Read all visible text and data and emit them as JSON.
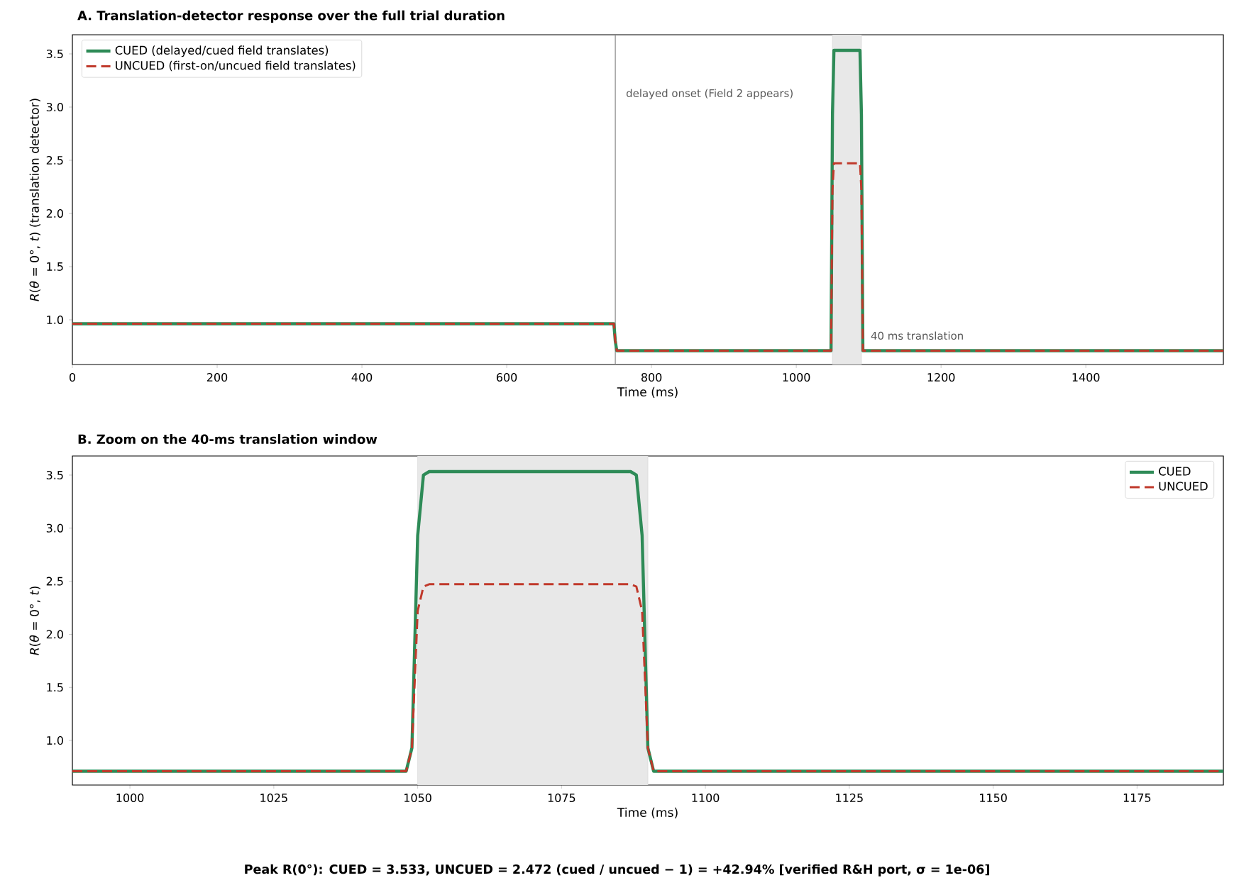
{
  "chart_data": [
    {
      "type": "line",
      "title": "**A.  Translation-detector response over the full trial duration**",
      "xlabel": "Time (ms)",
      "ylabel": "*R*(*θ* = 0°, *t*)    (translation detector)",
      "xlim": [
        0,
        1590
      ],
      "ylim": [
        0.58,
        3.68
      ],
      "xticks": [
        0,
        200,
        400,
        600,
        800,
        1000,
        1200,
        1400
      ],
      "yticks": [
        {
          "value": 1.0,
          "label": "1.0"
        },
        1.5,
        {
          "value": 2.0,
          "label": "2.0"
        },
        2.5,
        {
          "value": 3.0,
          "label": "3.0"
        },
        3.5
      ],
      "legend": "top left",
      "ref_lines": [
        {
          "axis": "x",
          "value": 750,
          "label": "delayed onset (Field 2 appears)",
          "color": "#888888"
        }
      ],
      "bands": [
        {
          "axis": "x",
          "from": 1050,
          "to": 1090,
          "label": "40 ms translation",
          "color": "#e8e8e8"
        }
      ],
      "series": [
        {
          "name": "CUED   (delayed/cued field translates)",
          "color": "#2e8b57",
          "line_style": "solid",
          "x": [
            0,
            748,
            750,
            752,
            1048,
            1050,
            1052,
            1088,
            1090,
            1092,
            1590
          ],
          "values": [
            0.963,
            0.963,
            0.8,
            0.71,
            0.71,
            2.93,
            3.533,
            3.533,
            2.93,
            0.71,
            0.71
          ]
        },
        {
          "name": "UNCUED (first-on/uncued field translates)",
          "color": "#c0392b",
          "line_style": "dashed",
          "x": [
            0,
            748,
            750,
            752,
            1048,
            1050,
            1052,
            1088,
            1090,
            1092,
            1590
          ],
          "values": [
            0.963,
            0.963,
            0.8,
            0.71,
            0.71,
            2.22,
            2.472,
            2.472,
            2.22,
            0.71,
            0.71
          ]
        }
      ]
    },
    {
      "type": "line",
      "title": "**B.  Zoom on the 40-ms translation window**",
      "xlabel": "Time (ms)",
      "ylabel": "*R*(*θ* = 0°, *t*)",
      "xlim": [
        990,
        1190
      ],
      "ylim": [
        0.58,
        3.68
      ],
      "xticks": [
        1000,
        1025,
        1050,
        1075,
        1100,
        1125,
        1150,
        1175
      ],
      "yticks": [
        {
          "value": 1.0,
          "label": "1.0"
        },
        1.5,
        {
          "value": 2.0,
          "label": "2.0"
        },
        2.5,
        {
          "value": 3.0,
          "label": "3.0"
        },
        3.5
      ],
      "legend": "top right",
      "bands": [
        {
          "axis": "x",
          "from": 1050,
          "to": 1090,
          "color": "#e8e8e8"
        }
      ],
      "annotations": [
        "**Peak R(0°):  CUED = 3.533,   UNCUED = 2.472       (cued / uncued − 1) = +42.94%       [verified R&H port, σ = 1e-06]**"
      ],
      "series": [
        {
          "name": "CUED",
          "color": "#2e8b57",
          "line_style": "solid",
          "x": [
            990,
            1048,
            1049,
            1050,
            1051,
            1052,
            1087,
            1088,
            1089,
            1090,
            1091,
            1190
          ],
          "values": [
            0.71,
            0.71,
            0.93,
            2.93,
            3.5,
            3.533,
            3.533,
            3.5,
            2.93,
            0.93,
            0.71,
            0.71
          ]
        },
        {
          "name": "UNCUED",
          "color": "#c0392b",
          "line_style": "dashed",
          "x": [
            990,
            1048,
            1049,
            1050,
            1051,
            1052,
            1087,
            1088,
            1089,
            1090,
            1091,
            1190
          ],
          "values": [
            0.71,
            0.71,
            0.93,
            2.22,
            2.45,
            2.472,
            2.472,
            2.45,
            2.22,
            0.93,
            0.71,
            0.71
          ]
        }
      ]
    }
  ]
}
